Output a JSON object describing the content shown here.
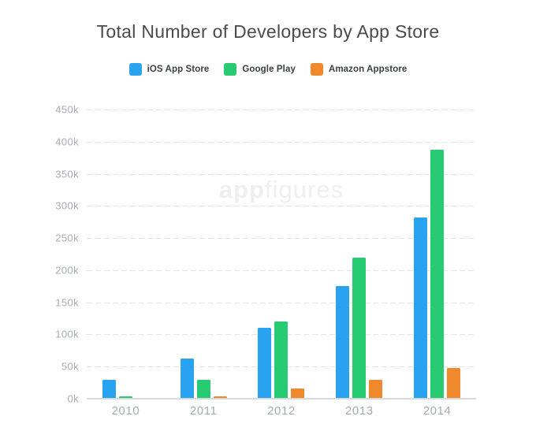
{
  "title": "Total Number of Developers by App Store",
  "watermark": {
    "bold": "app",
    "light": "figures"
  },
  "legend": [
    {
      "label": "iOS App Store",
      "color": "#29a3ef"
    },
    {
      "label": "Google Play",
      "color": "#26cb72"
    },
    {
      "label": "Amazon Appstore",
      "color": "#f0892c"
    }
  ],
  "colors": {
    "ios_blue": "#29a3ef",
    "google_green": "#26cb72",
    "amazon_orange": "#f0892c",
    "axis_text": "#a7acb2",
    "title_text": "#4b4b4b",
    "gridline": "#e3e4e6",
    "baseline": "#d7d9db",
    "watermark": "#efeff1"
  },
  "chart_data": {
    "type": "bar",
    "title": "Total Number of Developers by App Store",
    "categories": [
      "2010",
      "2011",
      "2012",
      "2013",
      "2014"
    ],
    "series": [
      {
        "name": "iOS App Store",
        "color": "#29a3ef",
        "values": [
          30000,
          62000,
          111000,
          175000,
          282000
        ]
      },
      {
        "name": "Google Play",
        "color": "#26cb72",
        "values": [
          4000,
          30000,
          120000,
          220000,
          388000
        ]
      },
      {
        "name": "Amazon Appstore",
        "color": "#f0892c",
        "values": [
          0,
          4000,
          16000,
          29000,
          48000
        ]
      }
    ],
    "xlabel": "",
    "ylabel": "",
    "ylim": [
      0,
      450000
    ],
    "ytick_step": 50000,
    "ytick_labels": [
      "0k",
      "50k",
      "100k",
      "150k",
      "200k",
      "250k",
      "300k",
      "350k",
      "400k",
      "450k"
    ],
    "grid": "horizontal-dashed",
    "legend_position": "top-center"
  }
}
